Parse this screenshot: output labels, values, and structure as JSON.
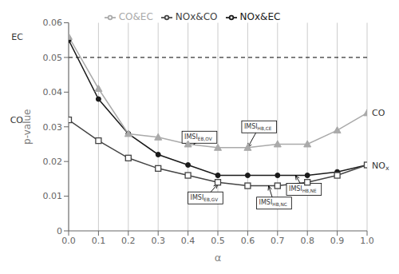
{
  "chart_data": {
    "type": "line",
    "xlabel": "α",
    "ylabel": "p-value",
    "x": [
      0,
      0.1,
      0.2,
      0.3,
      0.4,
      0.5,
      0.6,
      0.7,
      0.8,
      0.9,
      1.0
    ],
    "series": [
      {
        "name": "NOx&EC",
        "color": "#1a1a1a",
        "marker": "circle",
        "values": [
          0.055,
          0.038,
          0.028,
          0.022,
          0.019,
          0.016,
          0.016,
          0.016,
          0.016,
          0.017,
          0.019
        ]
      },
      {
        "name": "NOx&CO",
        "color": "#444444",
        "marker": "open-square",
        "values": [
          0.032,
          0.026,
          0.021,
          0.018,
          0.016,
          0.014,
          0.013,
          0.013,
          0.014,
          0.016,
          0.019
        ]
      },
      {
        "name": "CO&EC",
        "color": "#aaaaaa",
        "marker": "triangle",
        "values": [
          0.056,
          0.041,
          0.028,
          0.027,
          0.025,
          0.024,
          0.024,
          0.025,
          0.025,
          0.029,
          0.034
        ]
      }
    ],
    "xlim": [
      0,
      1
    ],
    "ylim": [
      0,
      0.06
    ],
    "xticks": [
      {
        "value": 0,
        "label": "0.0"
      },
      0.1,
      0.2,
      0.3,
      0.4,
      0.5,
      0.6,
      0.7,
      0.8,
      0.9,
      {
        "value": 1.0,
        "label": "1.0"
      }
    ],
    "yticks": [
      0,
      0.01,
      0.02,
      0.03,
      0.04,
      0.05,
      0.06
    ],
    "grid": "x",
    "legend": "top",
    "hline": {
      "y": 0.05,
      "line_style": "dashed",
      "color": "black"
    },
    "side_labels": [
      {
        "text": "EC",
        "side": "left",
        "series": "CO&EC"
      },
      {
        "text": "CO",
        "side": "left",
        "series": "NOx&CO"
      },
      {
        "text": "CO",
        "side": "right",
        "series": "CO&EC"
      },
      {
        "text": "NO",
        "subscript": "x",
        "side": "right",
        "series": "NOx&CO"
      }
    ],
    "annotations": [
      {
        "text": "IMSI",
        "subscript": "EB,OV",
        "x": 0.42,
        "y": 0.025,
        "text_x": 0.38,
        "text_y": 0.027
      },
      {
        "text": "IMSI",
        "subscript": "HB,CE",
        "x": 0.6,
        "y": 0.024,
        "text_x": 0.58,
        "text_y": 0.03
      },
      {
        "text": "IMSI",
        "subscript": "EB,GV",
        "x": 0.5,
        "y": 0.0135,
        "text_x": 0.4,
        "text_y": 0.0095
      },
      {
        "text": "IMSI",
        "subscript": "HB,NE",
        "x": 0.76,
        "y": 0.016,
        "text_x": 0.73,
        "text_y": 0.012
      },
      {
        "text": "IMSI",
        "subscript": "HB,NC",
        "x": 0.67,
        "y": 0.013,
        "text_x": 0.63,
        "text_y": 0.008
      }
    ]
  }
}
